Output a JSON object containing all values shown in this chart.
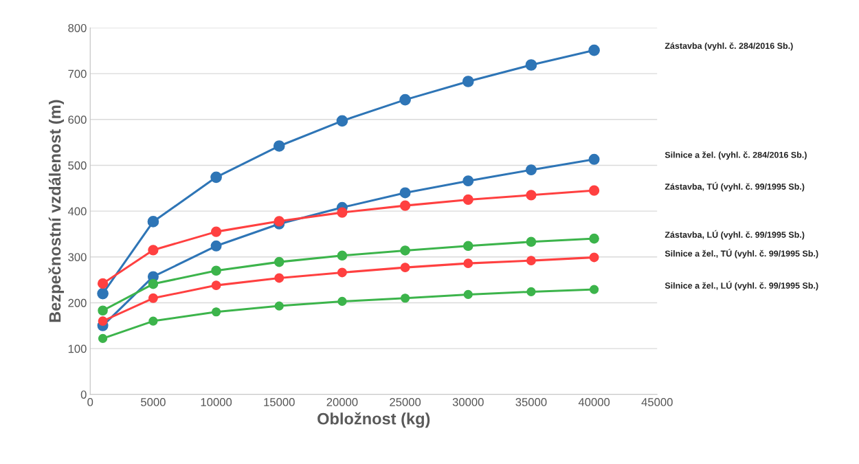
{
  "chart_data": {
    "type": "line",
    "xlabel": "Obložnost (kg)",
    "ylabel": "Bezpečnostní vzdálenost (m)",
    "x": [
      1000,
      5000,
      10000,
      15000,
      20000,
      25000,
      30000,
      35000,
      40000
    ],
    "series": [
      {
        "name": "Zástavba (vyhl. č. 284/2016 Sb.)",
        "color": "#2e75b6",
        "values": [
          220,
          377,
          474,
          542,
          597,
          643,
          683,
          719,
          751
        ]
      },
      {
        "name": "Silnice a žel. (vyhl. č. 284/2016 Sb.)",
        "color": "#2e75b6",
        "values": [
          150,
          257,
          324,
          372,
          408,
          440,
          466,
          490,
          513
        ]
      },
      {
        "name": "Zástavba, TÚ (vyhl. č. 99/1995 Sb.)",
        "color": "#ff4040",
        "values": [
          242,
          315,
          355,
          378,
          397,
          412,
          425,
          435,
          445
        ]
      },
      {
        "name": "Zástavba, LÚ (vyhl. č. 99/1995 Sb.)",
        "color": "#3cb44b",
        "values": [
          183,
          241,
          270,
          289,
          303,
          314,
          324,
          333,
          340
        ]
      },
      {
        "name": "Silnice a žel., TÚ (vyhl. č. 99/1995 Sb.)",
        "color": "#ff4040",
        "values": [
          160,
          210,
          238,
          254,
          266,
          277,
          286,
          292,
          299
        ]
      },
      {
        "name": "Silnice a žel., LÚ (vyhl. č. 99/1995 Sb.)",
        "color": "#3cb44b",
        "values": [
          122,
          160,
          180,
          193,
          203,
          210,
          218,
          224,
          229
        ]
      }
    ],
    "xlim": [
      0,
      45000
    ],
    "xticks": [
      0,
      5000,
      10000,
      15000,
      20000,
      25000,
      30000,
      35000,
      40000,
      45000
    ],
    "ylim": [
      0,
      800
    ],
    "yticks": [
      0,
      100,
      200,
      300,
      400,
      500,
      600,
      700,
      800
    ],
    "grid": "y",
    "legend": false,
    "marker": "circle",
    "line_style": "solid"
  }
}
